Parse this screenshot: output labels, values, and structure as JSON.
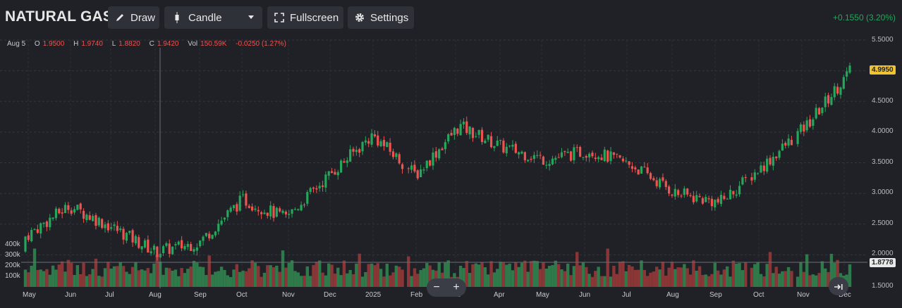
{
  "header": {
    "symbol": "NATURAL GAS",
    "buttons": {
      "draw": "Draw",
      "candle": "Candle",
      "fullscreen": "Fullscreen",
      "settings": "Settings"
    },
    "change": "+0.1550 (3.20%)"
  },
  "legend": {
    "date": "Aug 5",
    "open_label": "O",
    "open": "1.9500",
    "high_label": "H",
    "high": "1.9740",
    "low_label": "L",
    "low": "1.8820",
    "close_label": "C",
    "close": "1.9420",
    "vol_label": "Vol",
    "vol": "150.59K",
    "change": "-0.0250 (1.27%)"
  },
  "price_axis": [
    "5.5000",
    "4.5000",
    "4.0000",
    "3.5000",
    "3.0000",
    "2.5000",
    "2.0000",
    "1.5000"
  ],
  "last_price_tag": "4.9950",
  "crosshair_price_tag": "1.8778",
  "volume_axis": [
    "400k",
    "300k",
    "200k",
    "100k"
  ],
  "time_axis": [
    "May",
    "Jun",
    "Jul",
    "Aug",
    "Sep",
    "Oct",
    "Nov",
    "Dec",
    "2025",
    "Feb",
    "Mar",
    "Apr",
    "May",
    "Jun",
    "Jul",
    "Aug",
    "Sep",
    "Oct",
    "Nov",
    "Dec"
  ],
  "zoom": {
    "minus": "−",
    "plus": "+"
  },
  "colors": {
    "up": "#26a65b",
    "down": "#ef5350",
    "background": "#1f2126",
    "accent_tag": "#f0c330"
  },
  "chart_data": {
    "type": "candlestick",
    "x": [
      "May",
      "Jun",
      "Jul",
      "Aug",
      "Sep",
      "Oct",
      "Nov",
      "Dec",
      "2025",
      "Feb",
      "Mar",
      "Apr",
      "May",
      "Jun",
      "Jul",
      "Aug",
      "Sep",
      "Oct",
      "Nov",
      "Dec"
    ],
    "close": [
      2.3,
      2.8,
      2.45,
      2.05,
      2.2,
      2.9,
      2.6,
      3.3,
      3.95,
      3.3,
      4.1,
      3.75,
      3.55,
      3.7,
      3.45,
      3.0,
      2.85,
      3.45,
      4.1,
      4.99
    ],
    "ylim": [
      1.5,
      5.5
    ],
    "volume_ylim": [
      0,
      400000
    ]
  }
}
